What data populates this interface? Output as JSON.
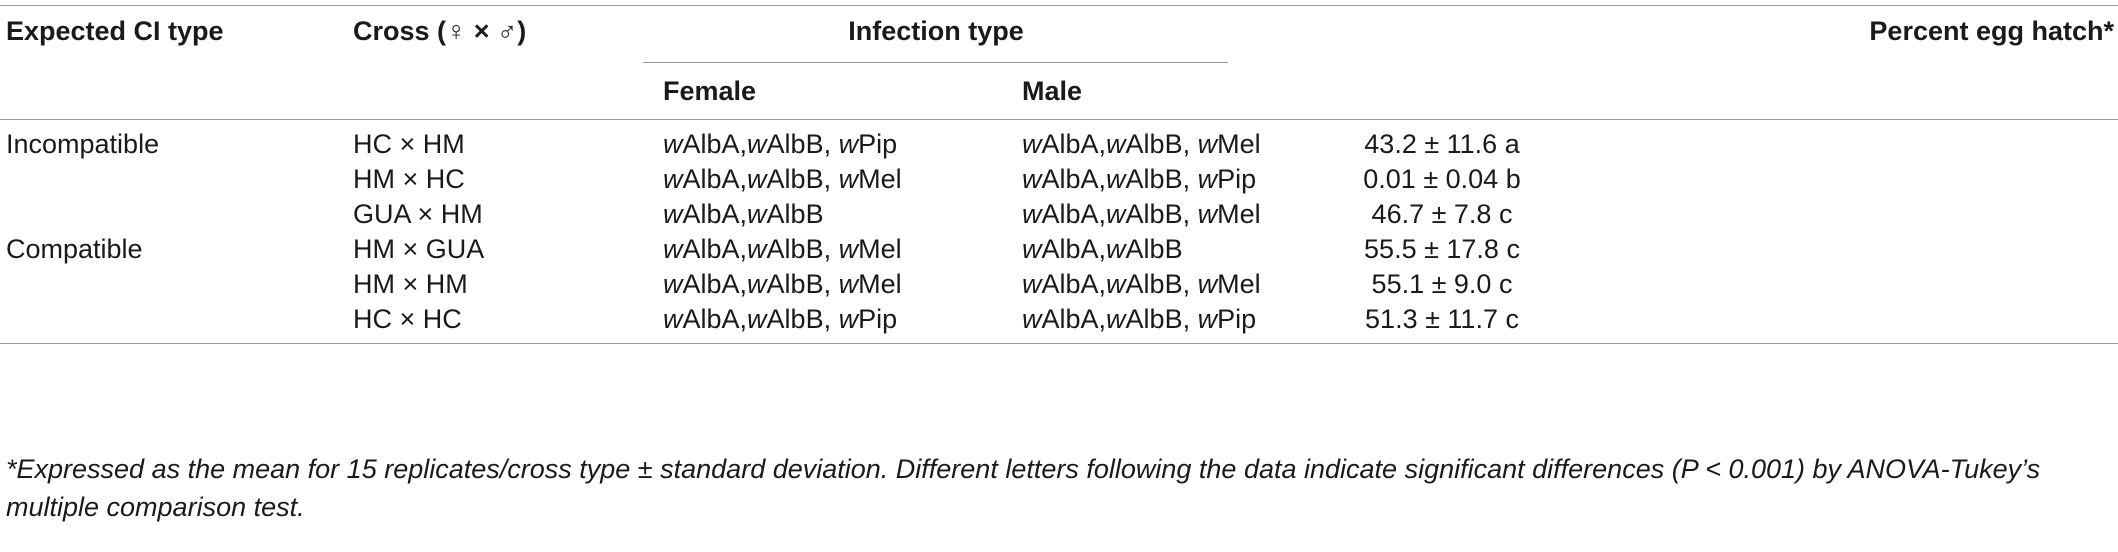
{
  "headers": {
    "expected_ci_type": "Expected CI type",
    "cross": "Cross (♀ × ♂)",
    "infection_type": "Infection type",
    "female": "Female",
    "male": "Male",
    "percent_egg_hatch": "Percent egg hatch*"
  },
  "rows": [
    {
      "ci_type": "Incompatible",
      "cross": "HC × HM",
      "female": [
        [
          "w",
          "AlbA,"
        ],
        [
          "w",
          "AlbB, "
        ],
        [
          "w",
          "Pip"
        ]
      ],
      "male": [
        [
          "w",
          "AlbA,"
        ],
        [
          "w",
          "AlbB, "
        ],
        [
          "w",
          "Mel"
        ]
      ],
      "hatch": "43.2 ± 11.6 a"
    },
    {
      "ci_type": "",
      "cross": "HM × HC",
      "female": [
        [
          "w",
          "AlbA,"
        ],
        [
          "w",
          "AlbB, "
        ],
        [
          "w",
          "Mel"
        ]
      ],
      "male": [
        [
          "w",
          "AlbA,"
        ],
        [
          "w",
          "AlbB, "
        ],
        [
          "w",
          "Pip"
        ]
      ],
      "hatch": "0.01 ± 0.04 b"
    },
    {
      "ci_type": "",
      "cross": "GUA × HM",
      "female": [
        [
          "w",
          "AlbA,"
        ],
        [
          "w",
          "AlbB"
        ]
      ],
      "male": [
        [
          "w",
          "AlbA,"
        ],
        [
          "w",
          "AlbB, "
        ],
        [
          "w",
          "Mel"
        ]
      ],
      "hatch": "46.7 ± 7.8 c"
    },
    {
      "ci_type": "Compatible",
      "cross": "HM × GUA",
      "female": [
        [
          "w",
          "AlbA,"
        ],
        [
          "w",
          "AlbB, "
        ],
        [
          "w",
          "Mel"
        ]
      ],
      "male": [
        [
          "w",
          "AlbA,"
        ],
        [
          "w",
          "AlbB"
        ]
      ],
      "hatch": "55.5 ± 17.8 c"
    },
    {
      "ci_type": "",
      "cross": "HM × HM",
      "female": [
        [
          "w",
          "AlbA,"
        ],
        [
          "w",
          "AlbB, "
        ],
        [
          "w",
          "Mel"
        ]
      ],
      "male": [
        [
          "w",
          "AlbA,"
        ],
        [
          "w",
          "AlbB, "
        ],
        [
          "w",
          "Mel"
        ]
      ],
      "hatch": "55.1 ± 9.0 c"
    },
    {
      "ci_type": "",
      "cross": "HC × HC",
      "female": [
        [
          "w",
          "AlbA,"
        ],
        [
          "w",
          "AlbB, "
        ],
        [
          "w",
          "Pip"
        ]
      ],
      "male": [
        [
          "w",
          "AlbA,"
        ],
        [
          "w",
          "AlbB, "
        ],
        [
          "w",
          "Pip"
        ]
      ],
      "hatch": "51.3 ± 11.7 c"
    }
  ],
  "footnote": "*Expressed as the mean for 15 replicates/cross type ± standard deviation. Different letters following the data indicate significant differences (P < 0.001) by ANOVA-Tukey’s multiple comparison test."
}
